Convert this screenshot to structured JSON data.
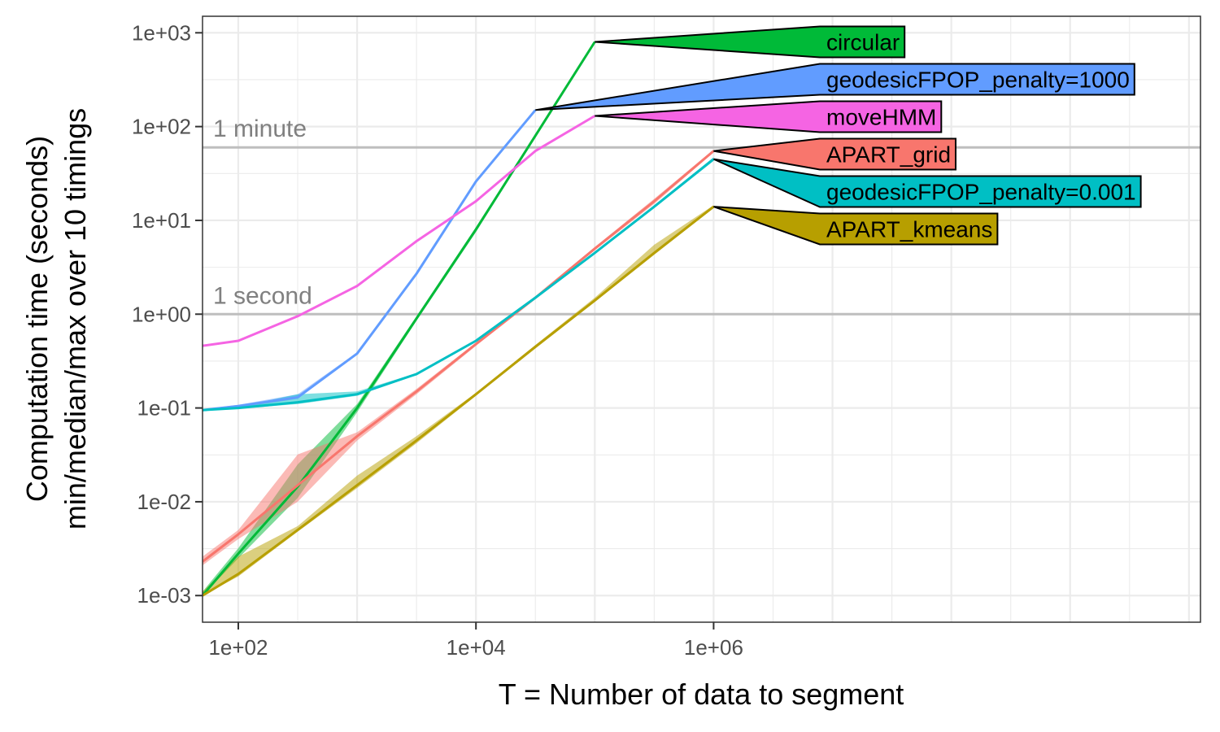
{
  "chart_data": {
    "type": "line",
    "title": "",
    "xlabel": "T = Number of data to segment",
    "ylabel": [
      "Computation time (seconds)",
      "min/median/max over 10 timings"
    ],
    "x_scale": "log10",
    "y_scale": "log10",
    "xlim": [
      50,
      12500000000
    ],
    "ylim": [
      0.00052,
      1500
    ],
    "x_ticks": [
      100,
      10000,
      1000000
    ],
    "x_tick_labels": [
      "1e+02",
      "1e+04",
      "1e+06"
    ],
    "y_ticks": [
      0.001,
      0.01,
      0.1,
      1,
      10,
      100,
      1000
    ],
    "y_tick_labels": [
      "1e-03",
      "1e-02",
      "1e-01",
      "1e+00",
      "1e+01",
      "1e+02",
      "1e+03"
    ],
    "grid": true,
    "legend": "direct labels at line ends",
    "reference_lines": [
      {
        "label": "1 second",
        "y": 1
      },
      {
        "label": "1 minute",
        "y": 60
      }
    ],
    "series": [
      {
        "name": "circular",
        "color": "#00BA38",
        "x": [
          50,
          100,
          316,
          1000,
          3162,
          10000,
          31623,
          100000
        ],
        "median": [
          0.001,
          0.0028,
          0.0145,
          0.1,
          0.9,
          8,
          80,
          800
        ],
        "min": [
          0.001,
          0.0025,
          0.011,
          0.09,
          0.85,
          7.5,
          78,
          790
        ],
        "max": [
          0.0011,
          0.0032,
          0.025,
          0.11,
          0.95,
          8.5,
          82,
          820
        ]
      },
      {
        "name": "geodesicFPOP_penalty=1000",
        "color": "#619CFF",
        "x": [
          50,
          100,
          316,
          1000,
          3162,
          10000,
          31623
        ],
        "median": [
          0.095,
          0.105,
          0.13,
          0.38,
          2.7,
          26,
          150
        ],
        "min": [
          0.093,
          0.1,
          0.125,
          0.37,
          2.6,
          25,
          148
        ],
        "max": [
          0.097,
          0.108,
          0.14,
          0.39,
          2.8,
          27,
          152
        ]
      },
      {
        "name": "moveHMM",
        "color": "#F564E3",
        "x": [
          50,
          100,
          316,
          1000,
          3162,
          10000,
          31623,
          100000
        ],
        "median": [
          0.46,
          0.52,
          0.95,
          2,
          6,
          16,
          55,
          130
        ],
        "min": [
          0.45,
          0.51,
          0.93,
          1.95,
          5.9,
          15.5,
          54,
          128
        ],
        "max": [
          0.47,
          0.53,
          0.97,
          2.05,
          6.1,
          16.5,
          56,
          132
        ]
      },
      {
        "name": "APART_grid",
        "color": "#F8766D",
        "x": [
          50,
          100,
          316,
          1000,
          3162,
          10000,
          31623,
          100000,
          316228,
          1000000
        ],
        "median": [
          0.0023,
          0.0045,
          0.015,
          0.05,
          0.15,
          0.48,
          1.5,
          5,
          16,
          55
        ],
        "min": [
          0.0021,
          0.004,
          0.01,
          0.045,
          0.14,
          0.46,
          1.45,
          4.8,
          15,
          53
        ],
        "max": [
          0.0026,
          0.005,
          0.032,
          0.055,
          0.16,
          0.5,
          1.55,
          5.2,
          17,
          57
        ]
      },
      {
        "name": "geodesicFPOP_penalty=0.001",
        "color": "#00BFC4",
        "x": [
          50,
          100,
          316,
          1000,
          3162,
          10000,
          31623,
          100000,
          316228,
          1000000
        ],
        "median": [
          0.095,
          0.1,
          0.115,
          0.14,
          0.23,
          0.52,
          1.5,
          4.5,
          14,
          45
        ],
        "min": [
          0.093,
          0.098,
          0.11,
          0.135,
          0.225,
          0.51,
          1.45,
          4.4,
          13.5,
          43
        ],
        "max": [
          0.097,
          0.103,
          0.14,
          0.15,
          0.235,
          0.53,
          1.55,
          4.6,
          14.5,
          47
        ]
      },
      {
        "name": "APART_kmeans",
        "color": "#B79F00",
        "x": [
          50,
          100,
          316,
          1000,
          3162,
          10000,
          31623,
          100000,
          316228,
          1000000
        ],
        "median": [
          0.001,
          0.0017,
          0.005,
          0.015,
          0.045,
          0.14,
          0.45,
          1.4,
          4.5,
          14
        ],
        "min": [
          0.001,
          0.0016,
          0.0048,
          0.014,
          0.042,
          0.135,
          0.43,
          1.35,
          4.3,
          13.5
        ],
        "max": [
          0.0011,
          0.0026,
          0.0055,
          0.019,
          0.05,
          0.145,
          0.47,
          1.5,
          5.5,
          14.5
        ]
      }
    ]
  }
}
